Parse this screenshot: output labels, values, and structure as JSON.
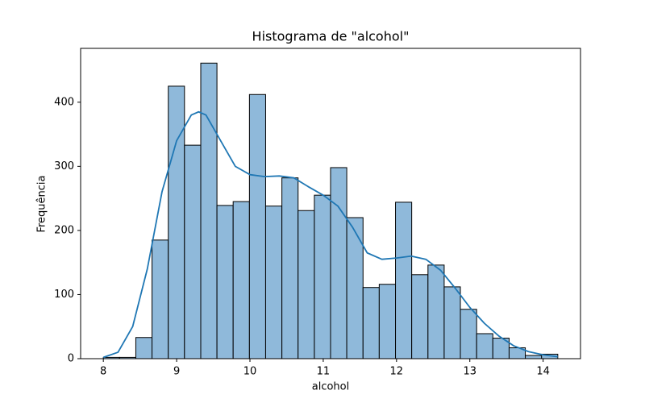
{
  "chart_data": {
    "type": "histogram",
    "title": "Histograma de \"alcohol\"",
    "xlabel": "alcohol",
    "ylabel": "Frequência",
    "bins": [
      8.0,
      8.221,
      8.443,
      8.664,
      8.886,
      9.107,
      9.329,
      9.55,
      9.771,
      9.993,
      10.214,
      10.436,
      10.657,
      10.879,
      11.1,
      11.321,
      11.543,
      11.764,
      11.986,
      12.207,
      12.429,
      12.65,
      12.871,
      13.093,
      13.314,
      13.536,
      13.757,
      13.979,
      14.2
    ],
    "values": [
      2,
      2,
      33,
      185,
      425,
      333,
      461,
      239,
      245,
      412,
      238,
      282,
      231,
      255,
      298,
      220,
      111,
      116,
      244,
      131,
      146,
      112,
      77,
      39,
      32,
      17,
      5,
      7
    ],
    "color": "#8fb9da",
    "edgecolor": "#000000",
    "kde": {
      "color": "#1f77b4",
      "x": [
        8.0,
        8.2,
        8.4,
        8.6,
        8.8,
        9.0,
        9.2,
        9.3,
        9.4,
        9.6,
        9.8,
        10.0,
        10.2,
        10.4,
        10.6,
        10.8,
        11.0,
        11.2,
        11.4,
        11.6,
        11.8,
        12.0,
        12.2,
        12.4,
        12.6,
        12.8,
        13.0,
        13.2,
        13.4,
        13.6,
        13.8,
        14.0,
        14.2
      ],
      "y": [
        2,
        10,
        50,
        140,
        260,
        340,
        380,
        385,
        380,
        340,
        300,
        287,
        284,
        285,
        282,
        268,
        255,
        238,
        205,
        165,
        155,
        157,
        160,
        155,
        138,
        110,
        80,
        55,
        35,
        20,
        11,
        6,
        3
      ]
    },
    "xlim": [
      7.69,
      14.51
    ],
    "ylim": [
      0,
      484
    ],
    "xticks": [
      8,
      9,
      10,
      11,
      12,
      13,
      14
    ],
    "yticks": [
      0,
      100,
      200,
      300,
      400
    ]
  }
}
